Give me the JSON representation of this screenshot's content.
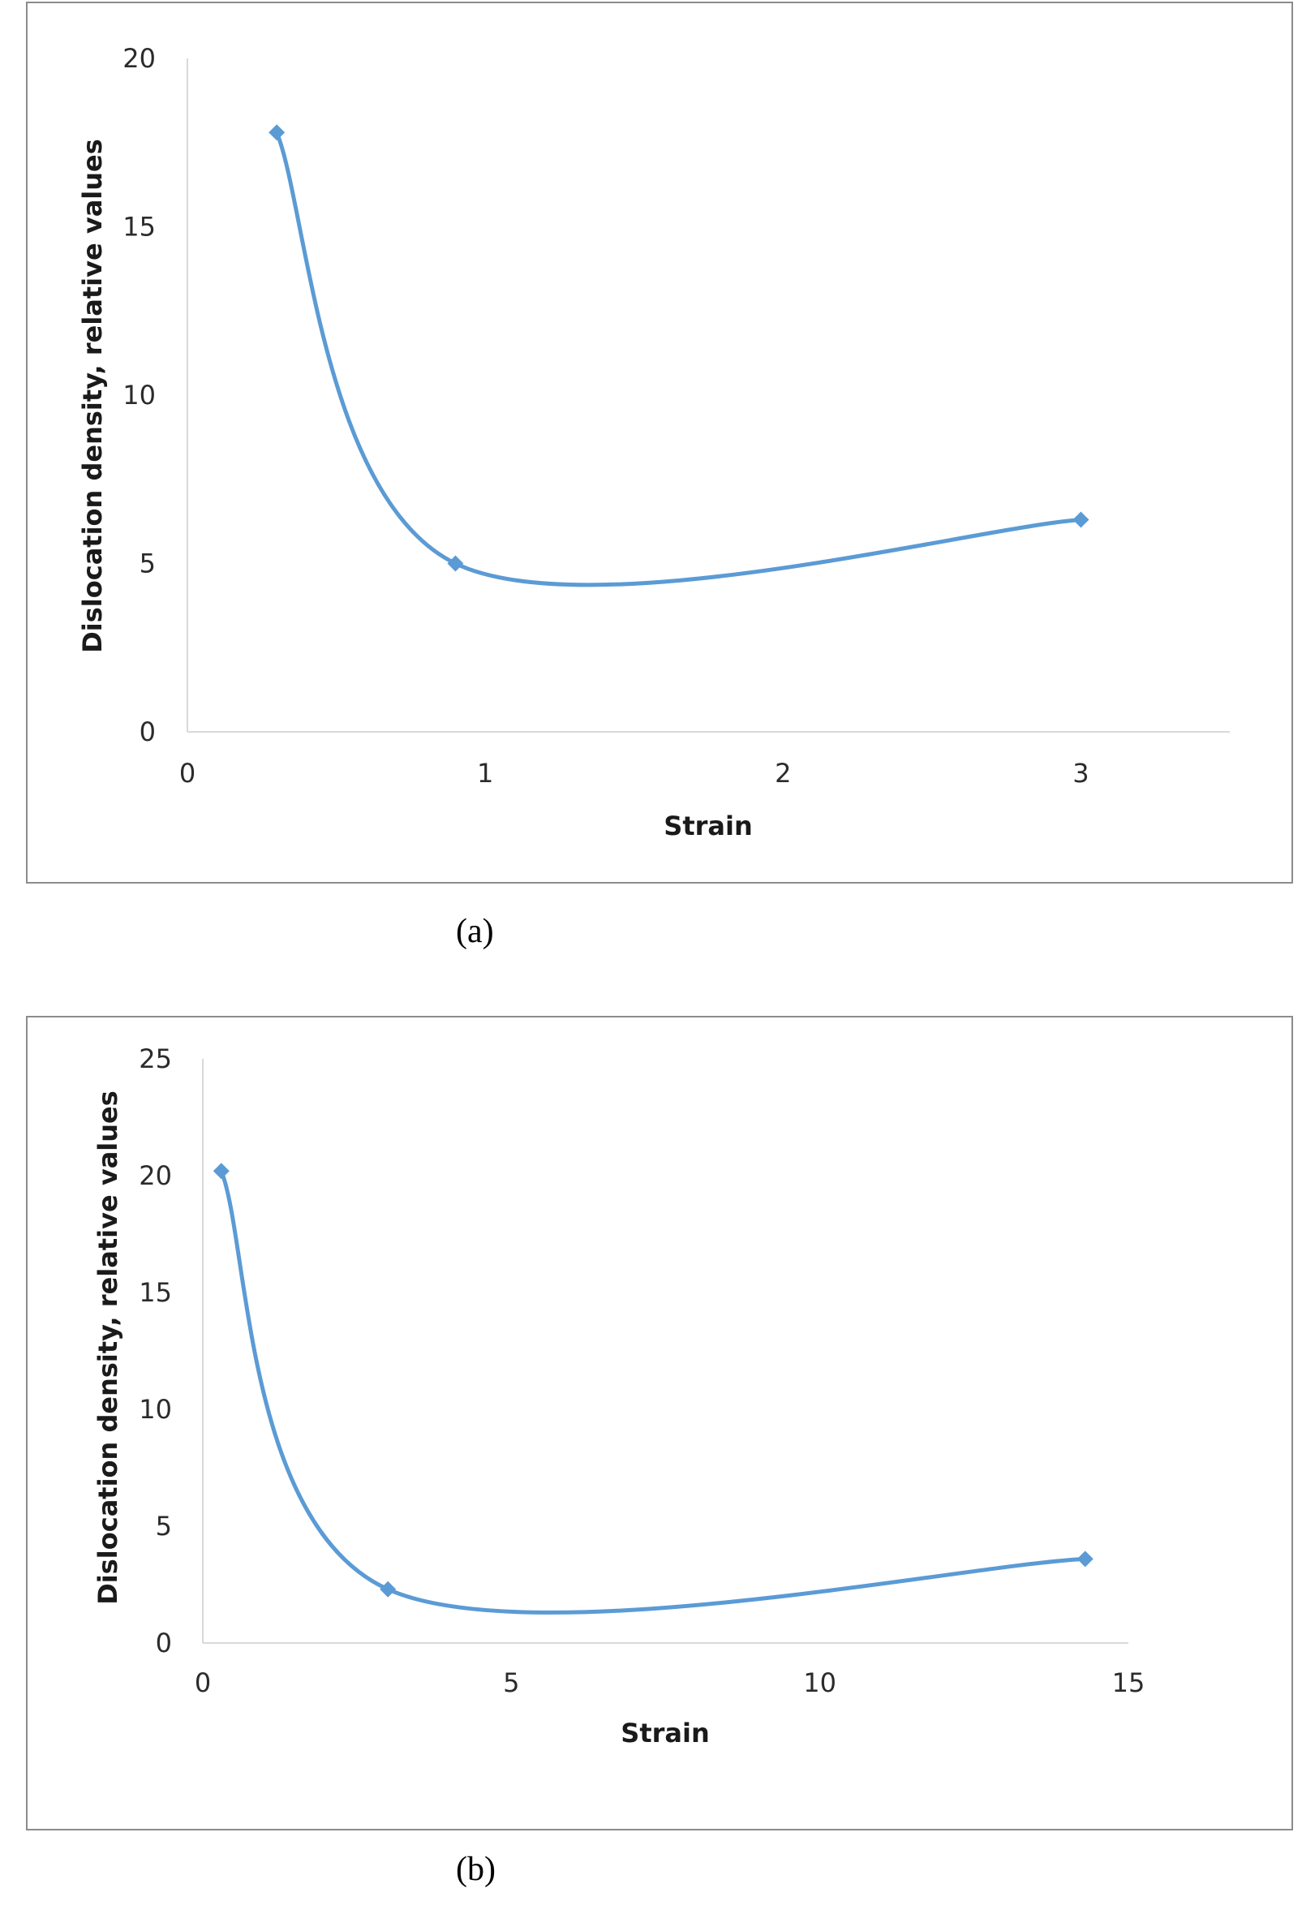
{
  "chart_data": [
    {
      "type": "scatter",
      "smooth": true,
      "title": "",
      "caption": "(a)",
      "xlabel": "Strain",
      "ylabel": "Dislocation density, relative values",
      "xlim": [
        0,
        3.5
      ],
      "ylim": [
        0,
        20
      ],
      "xticks": [
        0,
        1,
        2,
        3
      ],
      "yticks": [
        0,
        5,
        10,
        15,
        20
      ],
      "grid": false,
      "legend": "none",
      "series": [
        {
          "points": [
            {
              "x": 0.3,
              "y": 17.8
            },
            {
              "x": 0.9,
              "y": 5.0
            },
            {
              "x": 3.0,
              "y": 6.3
            }
          ]
        }
      ],
      "color": "#5b9bd5"
    },
    {
      "type": "scatter",
      "smooth": true,
      "title": "",
      "caption": "(b)",
      "xlabel": "Strain",
      "ylabel": "Dislocation density, relative values",
      "xlim": [
        0,
        15
      ],
      "ylim": [
        0,
        25
      ],
      "xticks": [
        0,
        5,
        10,
        15
      ],
      "yticks": [
        0,
        5,
        10,
        15,
        20,
        25
      ],
      "grid": false,
      "legend": "none",
      "series": [
        {
          "points": [
            {
              "x": 0.3,
              "y": 20.2
            },
            {
              "x": 3.0,
              "y": 2.3
            },
            {
              "x": 14.3,
              "y": 3.6
            }
          ]
        }
      ],
      "color": "#5b9bd5"
    }
  ]
}
